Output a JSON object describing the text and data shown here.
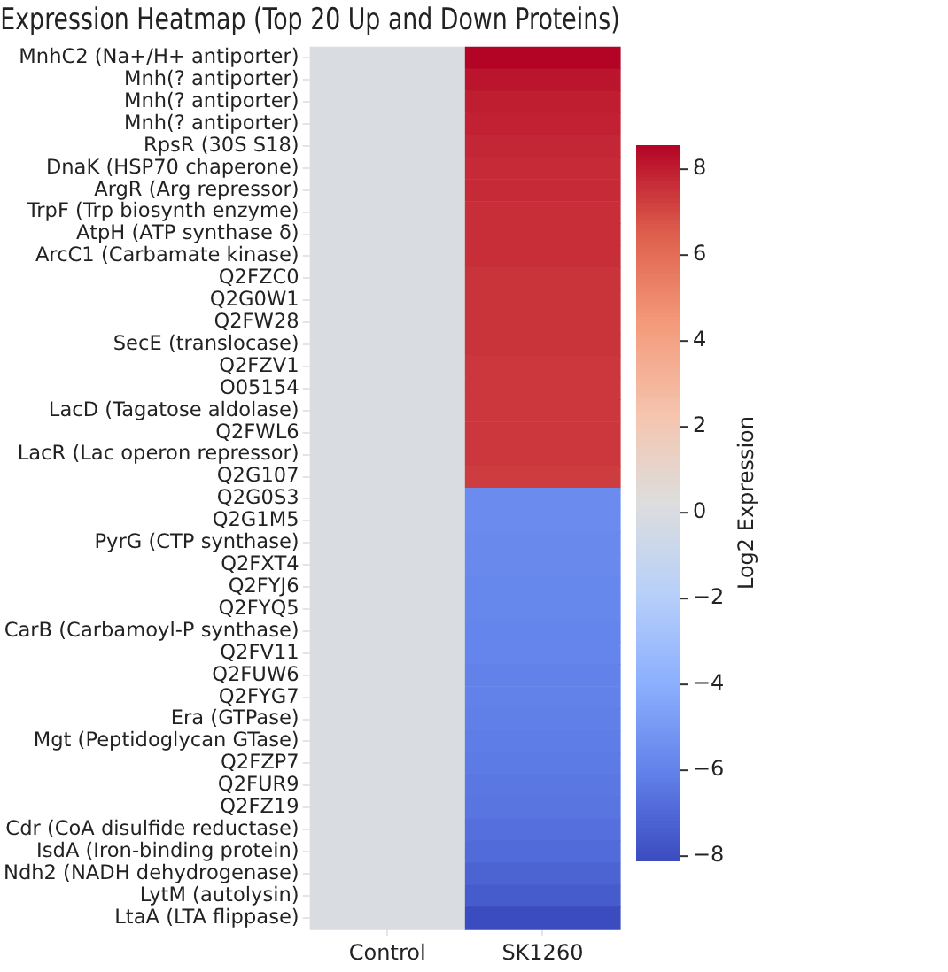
{
  "chart_data": {
    "type": "heatmap",
    "title": "Expression Heatmap (Top 20 Up and Down Proteins)",
    "clabel": "Log2 Expression",
    "categories": [
      "Control",
      "SK1260"
    ],
    "y_categories": [
      "MnhC2 (Na+/H+ antiporter)",
      "Mnh(? antiporter)",
      "Mnh(? antiporter)",
      "Mnh(? antiporter)",
      "RpsR (30S S18)",
      "DnaK (HSP70 chaperone)",
      "ArgR (Arg repressor)",
      "TrpF (Trp biosynth enzyme)",
      "AtpH (ATP synthase δ)",
      "ArcC1 (Carbamate kinase)",
      "Q2FZC0",
      "Q2G0W1",
      "Q2FW28",
      "SecE (translocase)",
      "Q2FZV1",
      "O05154",
      "LacD (Tagatose aldolase)",
      "Q2FWL6",
      "LacR (Lac operon repressor)",
      "Q2G107",
      "Q2G0S3",
      "Q2G1M5",
      "PyrG (CTP synthase)",
      "Q2FXT4",
      "Q2FYJ6",
      "Q2FYQ5",
      "CarB (Carbamoyl-P synthase)",
      "Q2FV11",
      "Q2FUW6",
      "Q2FYG7",
      "Era (GTPase)",
      "Mgt (Peptidoglycan GTase)",
      "Q2FZP7",
      "Q2FUR9",
      "Q2FZ19",
      "Cdr (CoA disulfide reductase)",
      "IsdA (Iron-binding protein)",
      "Ndh2 (NADH dehydrogenase)",
      "LytM (autolysin)",
      "LtaA (LTA flippase)"
    ],
    "cells": [
      [
        0,
        8.56
      ],
      [
        0,
        8.2
      ],
      [
        0,
        8.0
      ],
      [
        0,
        7.9
      ],
      [
        0,
        7.8
      ],
      [
        0,
        7.7
      ],
      [
        0,
        7.7
      ],
      [
        0,
        7.6
      ],
      [
        0,
        7.6
      ],
      [
        0,
        7.6
      ],
      [
        0,
        7.5
      ],
      [
        0,
        7.5
      ],
      [
        0,
        7.5
      ],
      [
        0,
        7.5
      ],
      [
        0,
        7.4
      ],
      [
        0,
        7.4
      ],
      [
        0,
        7.4
      ],
      [
        0,
        7.4
      ],
      [
        0,
        7.4
      ],
      [
        0,
        7.3
      ],
      [
        0,
        -5.6
      ],
      [
        0,
        -5.6
      ],
      [
        0,
        -5.7
      ],
      [
        0,
        -5.7
      ],
      [
        0,
        -5.8
      ],
      [
        0,
        -5.8
      ],
      [
        0,
        -5.9
      ],
      [
        0,
        -5.9
      ],
      [
        0,
        -6.0
      ],
      [
        0,
        -6.0
      ],
      [
        0,
        -6.1
      ],
      [
        0,
        -6.2
      ],
      [
        0,
        -6.3
      ],
      [
        0,
        -6.4
      ],
      [
        0,
        -6.5
      ],
      [
        0,
        -6.7
      ],
      [
        0,
        -6.9
      ],
      [
        0,
        -7.2
      ],
      [
        0,
        -7.5
      ],
      [
        0,
        -8.1
      ]
    ],
    "clim": [
      -8.1,
      8.56
    ],
    "cticks": [
      8,
      6,
      4,
      2,
      0,
      {
        "value": -2,
        "label": "−2"
      },
      {
        "value": -4,
        "label": "−4"
      },
      {
        "value": -6,
        "label": "−6"
      },
      {
        "value": -8,
        "label": "−8"
      }
    ]
  }
}
